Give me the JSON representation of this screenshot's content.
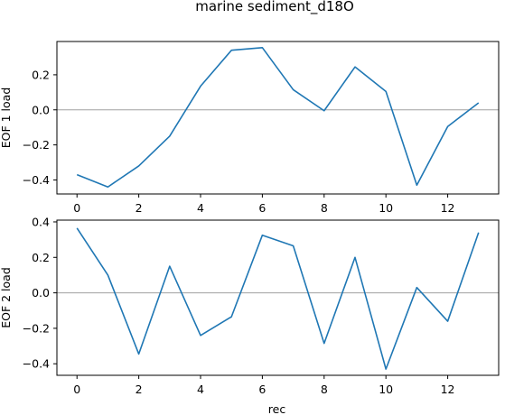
{
  "suptitle": "marine sediment_d18O",
  "colors": {
    "line": "#1f77b4",
    "zero_line": "#a0a0a0",
    "axes": "#000000"
  },
  "chart_data": [
    {
      "type": "line",
      "ylabel": "EOF 1 load",
      "xlabel": "",
      "xlim": [
        -0.65,
        13.65
      ],
      "ylim": [
        -0.48,
        0.39
      ],
      "xticks": [
        0,
        2,
        4,
        6,
        8,
        10,
        12
      ],
      "yticks": [
        0.2,
        0.0,
        -0.2,
        -0.4
      ],
      "ytick_labels": [
        "0.2",
        "0.0",
        "−0.2",
        "−0.4"
      ],
      "zero_line": 0,
      "x": [
        0,
        1,
        2,
        3,
        4,
        5,
        6,
        7,
        8,
        9,
        10,
        11,
        12,
        13
      ],
      "series": [
        {
          "values": [
            -0.37,
            -0.44,
            -0.32,
            -0.15,
            0.135,
            0.34,
            0.355,
            0.115,
            -0.005,
            0.245,
            0.105,
            -0.43,
            -0.095,
            0.04
          ]
        }
      ]
    },
    {
      "type": "line",
      "ylabel": "EOF 2 load",
      "xlabel": "rec",
      "xlim": [
        -0.65,
        13.65
      ],
      "ylim": [
        -0.465,
        0.41
      ],
      "xticks": [
        0,
        2,
        4,
        6,
        8,
        10,
        12
      ],
      "yticks": [
        0.4,
        0.2,
        0.0,
        -0.2,
        -0.4
      ],
      "ytick_labels": [
        "0.4",
        "0.2",
        "0.0",
        "−0.2",
        "−0.4"
      ],
      "zero_line": 0,
      "x": [
        0,
        1,
        2,
        3,
        4,
        5,
        6,
        7,
        8,
        9,
        10,
        11,
        12,
        13
      ],
      "series": [
        {
          "values": [
            0.365,
            0.1,
            -0.345,
            0.15,
            -0.24,
            -0.135,
            0.325,
            0.265,
            -0.285,
            0.2,
            -0.43,
            0.03,
            -0.16,
            0.34
          ]
        }
      ]
    }
  ]
}
